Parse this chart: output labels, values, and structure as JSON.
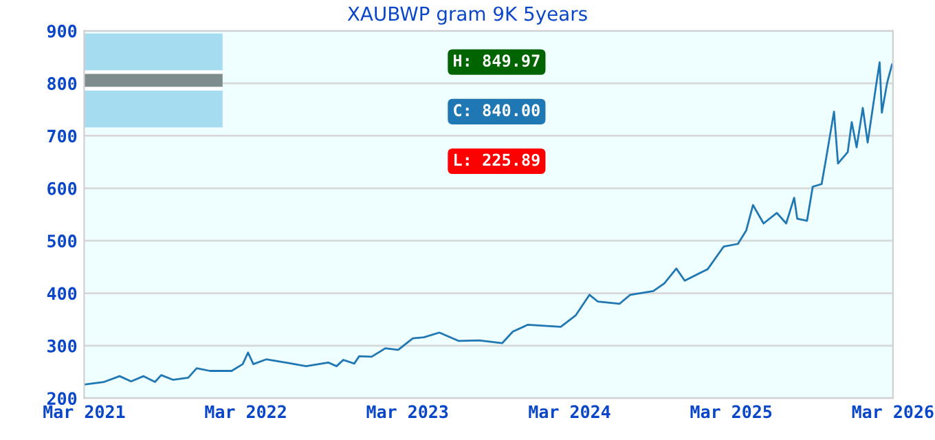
{
  "chart_data": {
    "type": "line",
    "title": "XAUBWP gram 9K 5years",
    "x": [
      "2021-03-01",
      "2021-04-15",
      "2021-05-20",
      "2021-06-15",
      "2021-07-13",
      "2021-08-08",
      "2021-08-22",
      "2021-09-18",
      "2021-10-22",
      "2021-11-10",
      "2021-12-10",
      "2022-01-28",
      "2022-02-22",
      "2022-03-06",
      "2022-03-18",
      "2022-04-16",
      "2022-06-06",
      "2022-07-15",
      "2022-09-03",
      "2022-09-22",
      "2022-10-07",
      "2022-11-01",
      "2022-11-12",
      "2022-12-10",
      "2023-01-10",
      "2023-02-08",
      "2023-03-13",
      "2023-04-07",
      "2023-05-12",
      "2023-06-25",
      "2023-08-10",
      "2023-10-01",
      "2023-10-25",
      "2023-11-28",
      "2024-02-10",
      "2024-03-15",
      "2024-04-15",
      "2024-05-04",
      "2024-06-22",
      "2024-07-16",
      "2024-09-06",
      "2024-10-01",
      "2024-10-28",
      "2024-11-16",
      "2025-01-07",
      "2025-02-12",
      "2025-03-16",
      "2025-04-04",
      "2025-04-19",
      "2025-05-13",
      "2025-06-12",
      "2025-07-03",
      "2025-07-21",
      "2025-07-28",
      "2025-08-19",
      "2025-09-01",
      "2025-09-21",
      "2025-10-01",
      "2025-10-19",
      "2025-10-28",
      "2025-11-19",
      "2025-11-28",
      "2025-12-09",
      "2025-12-23",
      "2026-01-03",
      "2026-01-22",
      "2026-01-30",
      "2026-02-04",
      "2026-02-16",
      "2026-02-27"
    ],
    "series": [
      {
        "color": "#1f77b4",
        "values": [
          226,
          231,
          242,
          232,
          242,
          231,
          244,
          235,
          239,
          257,
          252,
          252,
          265,
          287,
          265,
          274,
          267,
          261,
          268,
          261,
          273,
          266,
          280,
          279,
          295,
          292,
          314,
          316,
          325,
          309,
          310,
          305,
          327,
          340,
          336,
          358,
          397,
          384,
          380,
          397,
          404,
          419,
          447,
          424,
          446,
          489,
          494,
          520,
          568,
          533,
          553,
          533,
          582,
          542,
          538,
          603,
          608,
          656,
          746,
          647,
          669,
          726,
          678,
          753,
          687,
          796,
          840,
          744,
          801,
          836
        ]
      }
    ],
    "xlim": [
      "2021-03-01",
      "2026-03-01"
    ],
    "xticks": [
      {
        "value": "2021-03-01",
        "label": "Mar 2021"
      },
      {
        "value": "2022-03-01",
        "label": "Mar 2022"
      },
      {
        "value": "2023-03-01",
        "label": "Mar 2023"
      },
      {
        "value": "2024-03-01",
        "label": "Mar 2024"
      },
      {
        "value": "2025-03-01",
        "label": "Mar 2025"
      },
      {
        "value": "2026-03-01",
        "label": "Mar 2026"
      }
    ],
    "ylim": [
      200,
      900
    ],
    "yticks": [
      200,
      300,
      400,
      500,
      600,
      700,
      800,
      900
    ],
    "grid": "y",
    "marker": "none",
    "line_style": "solid",
    "annotations": [
      "H: 849.97",
      "C: 840.00",
      "L: 225.89"
    ]
  }
}
